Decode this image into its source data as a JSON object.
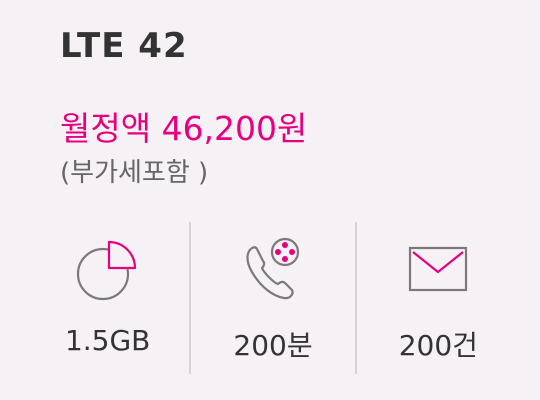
{
  "plan": {
    "name": "LTE 42",
    "price": "월정액 46,200원",
    "vat_note": "(부가세포함 )"
  },
  "benefits": [
    {
      "icon": "data-pie-icon",
      "value": "1.5GB"
    },
    {
      "icon": "phone-call-icon",
      "value": "200분"
    },
    {
      "icon": "envelope-icon",
      "value": "200건"
    }
  ],
  "colors": {
    "accent": "#e6007e",
    "text": "#333333",
    "subtext": "#666666",
    "background": "#f5f1f5"
  }
}
